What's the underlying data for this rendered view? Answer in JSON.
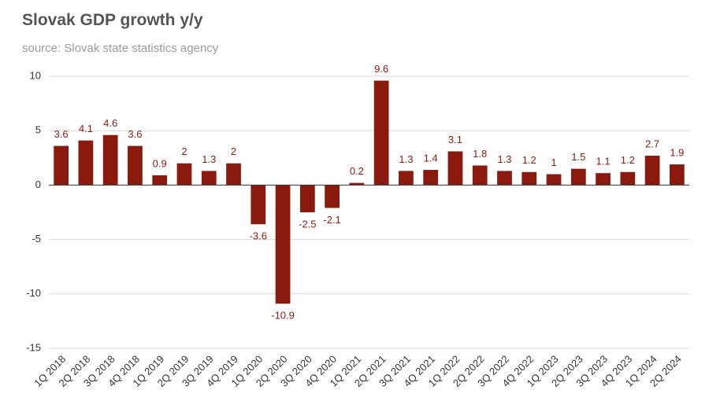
{
  "chart_data": {
    "type": "bar",
    "title": "Slovak GDP growth y/y",
    "subtitle": "source: Slovak state statistics agency",
    "categories": [
      "1Q 2018",
      "2Q 2018",
      "3Q 2018",
      "4Q 2018",
      "1Q 2019",
      "2Q 2019",
      "3Q 2019",
      "4Q 2019",
      "1Q 2020",
      "2Q 2020",
      "3Q 2020",
      "4Q 2020",
      "1Q 2021",
      "2Q 2021",
      "3Q 2021",
      "4Q 2021",
      "1Q 2022",
      "2Q 2022",
      "3Q 2022",
      "4Q 2022",
      "1Q 2023",
      "2Q 2023",
      "3Q 2023",
      "4Q 2023",
      "1Q 2024",
      "2Q 2024"
    ],
    "values": [
      3.6,
      4.1,
      4.6,
      3.6,
      0.9,
      2,
      1.3,
      2,
      -3.6,
      -10.9,
      -2.5,
      -2.1,
      0.2,
      9.6,
      1.3,
      1.4,
      3.1,
      1.8,
      1.3,
      1.2,
      1,
      1.5,
      1.1,
      1.2,
      2.7,
      1.9
    ],
    "color": "#8b1a0e",
    "ylim": [
      -15,
      10
    ],
    "yticks": [
      -15,
      -10,
      -5,
      0,
      5,
      10
    ],
    "grid": true
  }
}
